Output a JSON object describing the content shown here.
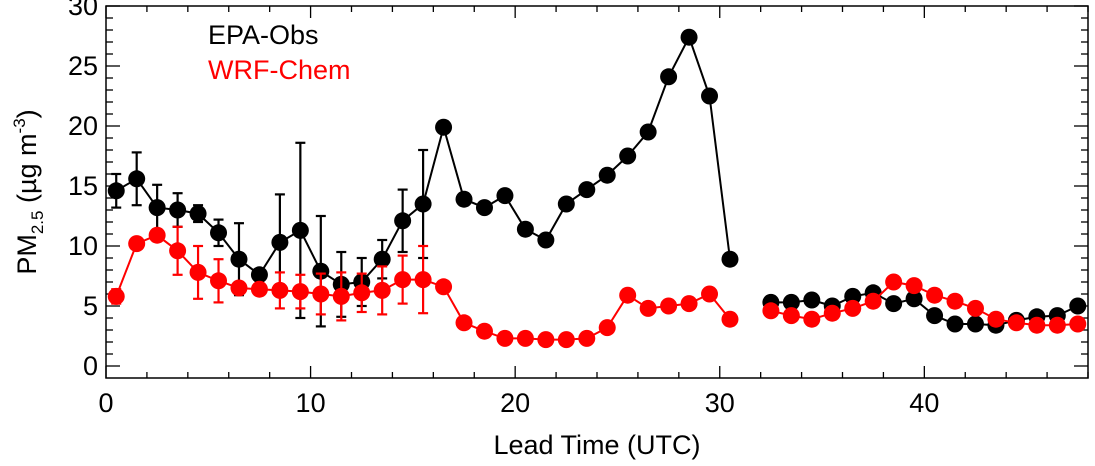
{
  "chart_data": {
    "type": "line",
    "title": "",
    "xlabel": "Lead Time (UTC)",
    "ylabel": {
      "base": "PM",
      "sub": "2.5",
      "units_open": " (µg m",
      "units_sup": "-3",
      "units_close": ")"
    },
    "xlim": [
      0,
      48
    ],
    "ylim": [
      -1,
      30
    ],
    "xticks": [
      0,
      10,
      20,
      30,
      40
    ],
    "yticks": [
      0,
      5,
      10,
      15,
      20,
      25,
      30
    ],
    "grid": false,
    "legend_position": "top-left",
    "series": [
      {
        "name": "EPA-Obs",
        "color": "#000000",
        "x": [
          0.5,
          1.5,
          2.5,
          3.5,
          4.5,
          5.5,
          6.5,
          7.5,
          8.5,
          9.5,
          10.5,
          11.5,
          12.5,
          13.5,
          14.5,
          15.5,
          16.5,
          17.5,
          18.5,
          19.5,
          20.5,
          21.5,
          22.5,
          23.5,
          24.5,
          25.5,
          26.5,
          27.5,
          28.5,
          29.5,
          30.5,
          32.5,
          33.5,
          34.5,
          35.5,
          36.5,
          37.5,
          38.5,
          39.5,
          40.5,
          41.5,
          42.5,
          43.5,
          44.5,
          45.5,
          46.5,
          47.5
        ],
        "y": [
          14.6,
          15.6,
          13.2,
          13.0,
          12.7,
          11.1,
          8.9,
          7.6,
          10.3,
          11.3,
          7.9,
          6.8,
          7.0,
          8.9,
          12.1,
          13.5,
          19.9,
          13.9,
          13.2,
          14.2,
          11.4,
          10.5,
          13.5,
          14.7,
          15.9,
          17.5,
          19.5,
          24.1,
          27.4,
          22.5,
          8.9,
          5.3,
          5.3,
          5.5,
          5.0,
          5.8,
          6.1,
          5.2,
          5.6,
          4.2,
          3.5,
          3.5,
          3.4,
          3.8,
          4.1,
          4.2,
          5.0
        ],
        "err": [
          1.4,
          2.2,
          1.9,
          1.4,
          0.7,
          1.1,
          3.0,
          0,
          4.0,
          7.3,
          4.6,
          2.7,
          2.0,
          1.6,
          2.6,
          4.5,
          0,
          0,
          0,
          0,
          0,
          0,
          0,
          0,
          0,
          0,
          0,
          0,
          0,
          0,
          0,
          0,
          0,
          0,
          0,
          0,
          0,
          0,
          0,
          0,
          0,
          0,
          0,
          0,
          0,
          0,
          0
        ]
      },
      {
        "name": "WRF-Chem",
        "color": "#ff0000",
        "x": [
          0.5,
          1.5,
          2.5,
          3.5,
          4.5,
          5.5,
          6.5,
          7.5,
          8.5,
          9.5,
          10.5,
          11.5,
          12.5,
          13.5,
          14.5,
          15.5,
          16.5,
          17.5,
          18.5,
          19.5,
          20.5,
          21.5,
          22.5,
          23.5,
          24.5,
          25.5,
          26.5,
          27.5,
          28.5,
          29.5,
          30.5,
          32.5,
          33.5,
          34.5,
          35.5,
          36.5,
          37.5,
          38.5,
          39.5,
          40.5,
          41.5,
          42.5,
          43.5,
          44.5,
          45.5,
          46.5,
          47.5
        ],
        "y": [
          5.8,
          10.2,
          10.9,
          9.6,
          7.8,
          7.1,
          6.5,
          6.4,
          6.3,
          6.2,
          6.0,
          5.8,
          6.1,
          6.3,
          7.2,
          7.2,
          6.6,
          3.6,
          2.9,
          2.3,
          2.3,
          2.2,
          2.2,
          2.3,
          3.2,
          5.9,
          4.8,
          5.0,
          5.2,
          6.0,
          3.9,
          4.6,
          4.2,
          3.9,
          4.4,
          4.8,
          5.4,
          7.0,
          6.7,
          5.9,
          5.4,
          4.8,
          3.9,
          3.6,
          3.4,
          3.4,
          3.5
        ],
        "err": [
          0.6,
          0,
          0,
          2.0,
          2.2,
          1.8,
          0,
          0,
          1.5,
          1.4,
          1.7,
          2.0,
          1.6,
          2.0,
          2.0,
          2.8,
          0,
          0,
          0,
          0,
          0,
          0,
          0,
          0,
          0,
          0,
          0,
          0,
          0,
          0,
          0,
          0,
          0,
          0,
          0,
          0,
          0,
          0,
          0,
          0,
          0,
          0,
          0,
          0,
          0,
          0,
          0
        ]
      }
    ]
  }
}
